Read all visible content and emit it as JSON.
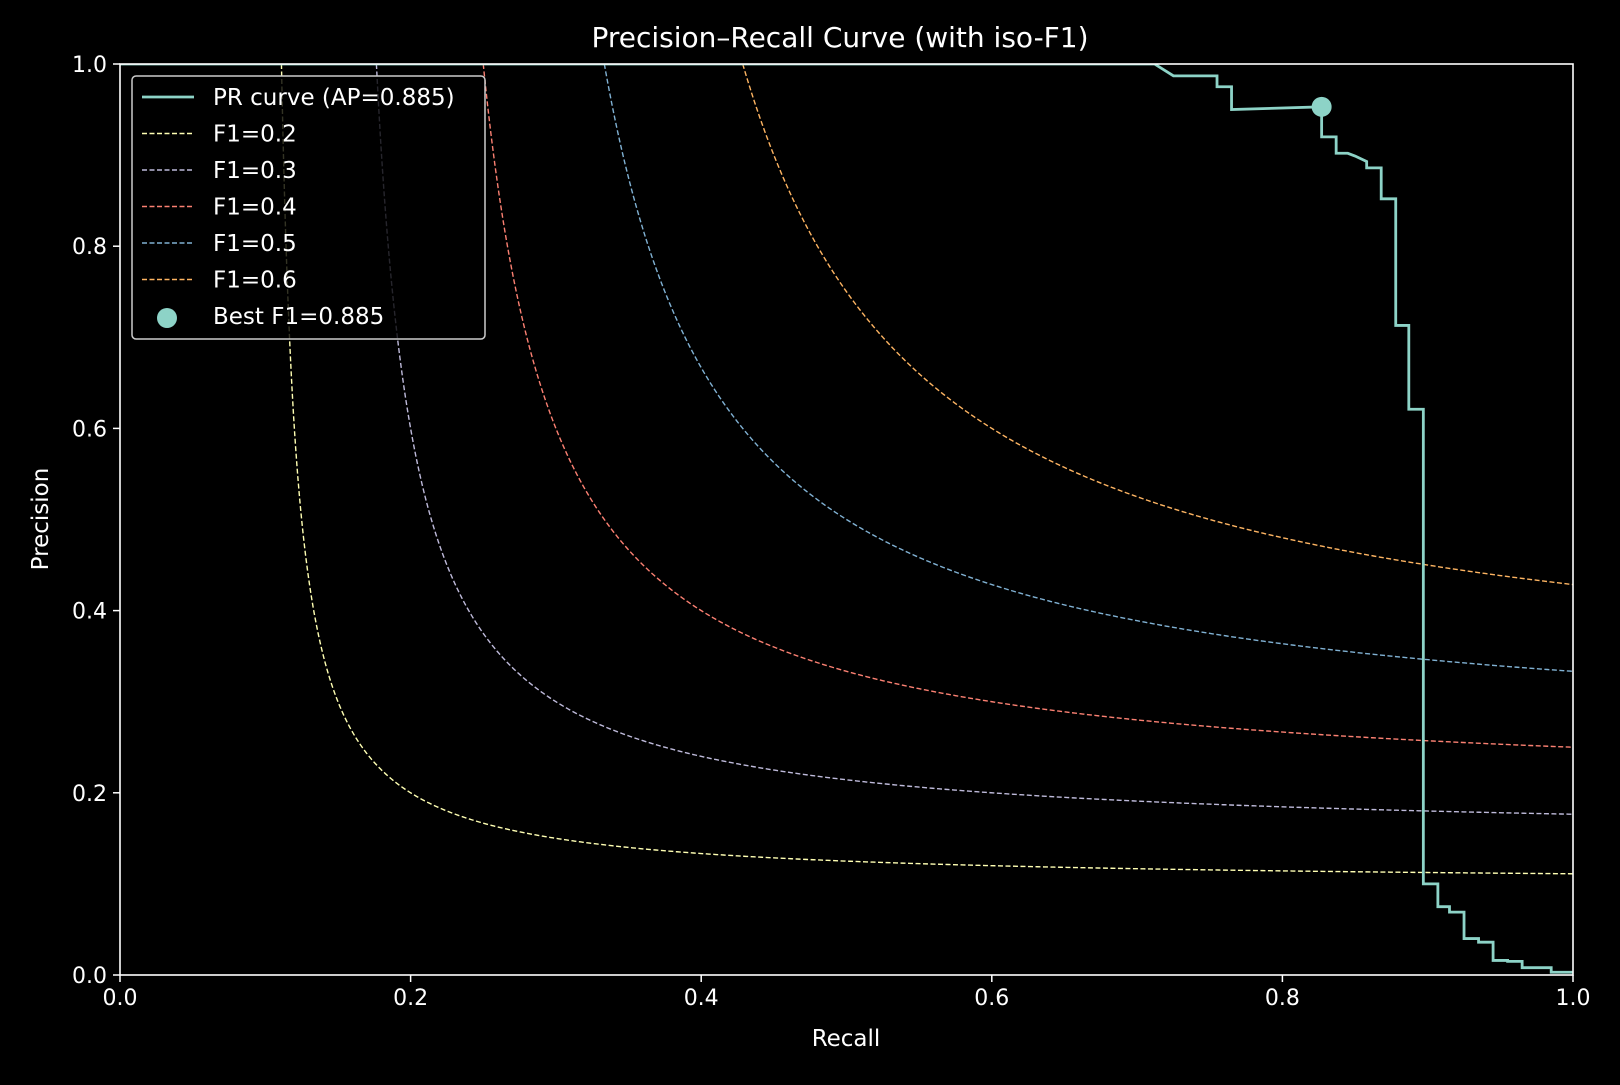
{
  "chart_data": {
    "type": "line",
    "title": "Precision–Recall Curve (with iso-F1)",
    "xlabel": "Recall",
    "ylabel": "Precision",
    "xlim": [
      0.0,
      1.0
    ],
    "ylim": [
      0.0,
      1.0
    ],
    "xticks": [
      "0.0",
      "0.2",
      "0.4",
      "0.6",
      "0.8",
      "1.0"
    ],
    "yticks": [
      "0.0",
      "0.2",
      "0.4",
      "0.6",
      "0.8",
      "1.0"
    ],
    "grid": false,
    "legend_position": "upper-left",
    "colors": {
      "background": "#000000",
      "foreground": "#ffffff",
      "pr_curve": "#8dd3c7"
    },
    "pr_curve": {
      "name": "PR curve (AP=0.885)",
      "x": [
        0.0,
        0.712,
        0.725,
        0.725,
        0.755,
        0.755,
        0.765,
        0.765,
        0.827,
        0.827,
        0.837,
        0.837,
        0.845,
        0.85,
        0.858,
        0.858,
        0.868,
        0.868,
        0.878,
        0.878,
        0.887,
        0.887,
        0.897,
        0.897,
        0.907,
        0.907,
        0.915,
        0.915,
        0.925,
        0.925,
        0.935,
        0.935,
        0.945,
        0.945,
        0.955,
        0.955,
        0.965,
        0.965,
        0.985,
        0.985,
        1.0
      ],
      "y": [
        1.0,
        1.0,
        0.987,
        0.987,
        0.987,
        0.975,
        0.975,
        0.95,
        0.953,
        0.92,
        0.92,
        0.902,
        0.902,
        0.899,
        0.893,
        0.886,
        0.886,
        0.852,
        0.852,
        0.713,
        0.713,
        0.621,
        0.621,
        0.1,
        0.1,
        0.075,
        0.075,
        0.069,
        0.069,
        0.04,
        0.04,
        0.036,
        0.036,
        0.016,
        0.016,
        0.015,
        0.015,
        0.008,
        0.008,
        0.003,
        0.003
      ]
    },
    "iso_f1": [
      {
        "name": "F1=0.2",
        "f1": 0.2,
        "color": "#ffffb3"
      },
      {
        "name": "F1=0.3",
        "f1": 0.3,
        "color": "#bebada"
      },
      {
        "name": "F1=0.4",
        "f1": 0.4,
        "color": "#fb8072"
      },
      {
        "name": "F1=0.5",
        "f1": 0.5,
        "color": "#80b1d3"
      },
      {
        "name": "F1=0.6",
        "f1": 0.6,
        "color": "#fdb462"
      }
    ],
    "best_point": {
      "name": "Best F1=0.885",
      "x": 0.827,
      "y": 0.953
    }
  }
}
